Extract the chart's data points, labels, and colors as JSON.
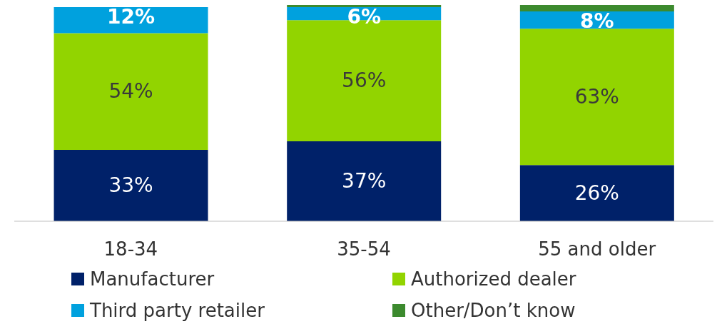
{
  "chart_data": {
    "type": "bar",
    "stacked": true,
    "categories": [
      "18-34",
      "35-54",
      "55 and older"
    ],
    "ylim": [
      0,
      100
    ],
    "legend": "bottom",
    "tick_labels": "x",
    "series": [
      {
        "name": "Manufacturer",
        "color": "#002169",
        "values": [
          33,
          37,
          26
        ],
        "value_labels": [
          "33%",
          "37%",
          "26%"
        ]
      },
      {
        "name": "Authorized dealer",
        "color": "#92d400",
        "values": [
          54,
          56,
          63
        ],
        "value_labels": [
          "54%",
          "56%",
          "63%"
        ]
      },
      {
        "name": "Third party retailer",
        "color": "#00a1de",
        "values": [
          12,
          6,
          8
        ],
        "value_labels": [
          "12%",
          "6%",
          "8%"
        ]
      },
      {
        "name": "Other/Don’t know",
        "color": "#3c8a2e",
        "values": [
          0,
          1,
          3
        ],
        "value_labels": [
          null,
          null,
          null
        ]
      }
    ]
  }
}
